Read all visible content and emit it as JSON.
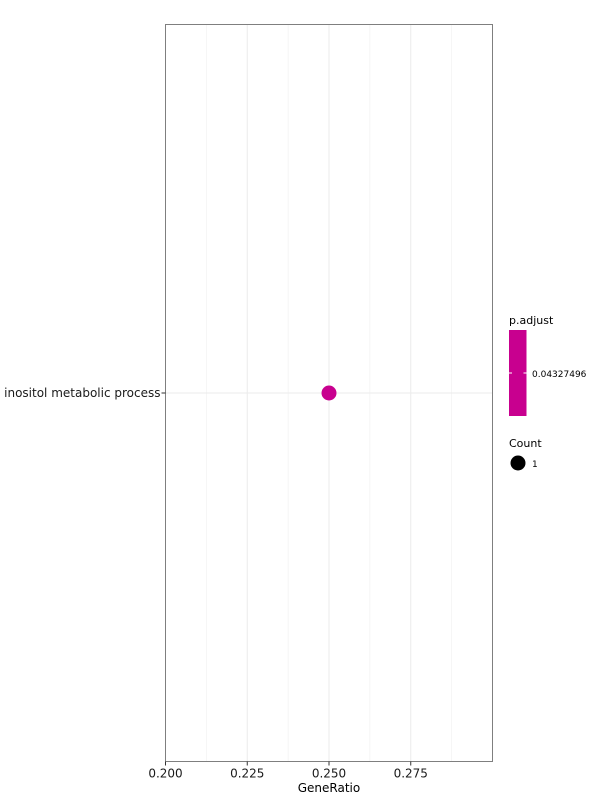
{
  "chart_data": {
    "type": "scatter",
    "title": "",
    "xlabel": "GeneRatio",
    "ylabel": "",
    "xlim": [
      0.2,
      0.3
    ],
    "x_ticks": [
      "0.200",
      "0.225",
      "0.250",
      "0.275"
    ],
    "categories": [
      "inositol metabolic process"
    ],
    "points": [
      {
        "term": "inositol metabolic process",
        "gene_ratio": 0.25,
        "p_adjust": 0.04327496,
        "count": 1,
        "color": "#C8008F"
      }
    ],
    "grid": true,
    "legend": {
      "placement": "right",
      "color_title": "p.adjust",
      "color_label": "0.04327496",
      "color_value": "#C8008F",
      "size_title": "Count",
      "size_label": "1"
    }
  }
}
